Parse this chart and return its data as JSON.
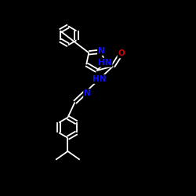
{
  "background_color": "#000000",
  "bond_color": "#ffffff",
  "N_color": "#1010ff",
  "O_color": "#cc0000",
  "bond_lw": 1.3,
  "fs": 7.5,
  "figsize": [
    2.5,
    2.5
  ],
  "dpi": 100,
  "xlim": [
    0,
    250
  ],
  "ylim": [
    0,
    250
  ]
}
